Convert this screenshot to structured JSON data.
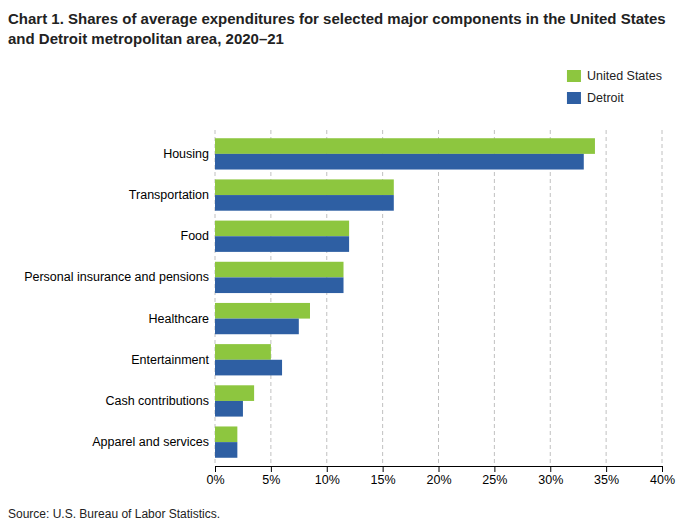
{
  "chart_data": {
    "type": "bar",
    "orientation": "horizontal",
    "title": "Chart 1. Shares of average expenditures for selected major components in the United States and Detroit metropolitan area, 2020–21",
    "source": "Source: U.S. Bureau of Labor Statistics.",
    "categories": [
      "Apparel and services",
      "Cash contributions",
      "Entertainment",
      "Healthcare",
      "Personal insurance and pensions",
      "Food",
      "Transportation",
      "Housing"
    ],
    "series": [
      {
        "name": "United States",
        "color": "#8dc63f",
        "values": [
          2.0,
          3.5,
          5.0,
          8.5,
          11.5,
          12.0,
          16.0,
          34.0
        ]
      },
      {
        "name": "Detroit",
        "color": "#2e5fa3",
        "values": [
          2.0,
          2.5,
          6.0,
          7.5,
          11.5,
          12.0,
          16.0,
          33.0
        ]
      }
    ],
    "xlim": [
      0,
      40
    ],
    "xticks": [
      {
        "value": 0,
        "label": "0%"
      },
      {
        "value": 5,
        "label": "5%"
      },
      {
        "value": 10,
        "label": "10%"
      },
      {
        "value": 15,
        "label": "15%"
      },
      {
        "value": 20,
        "label": "20%"
      },
      {
        "value": 25,
        "label": "25%"
      },
      {
        "value": 30,
        "label": "30%"
      },
      {
        "value": 35,
        "label": "35%"
      },
      {
        "value": 40,
        "label": "40%"
      }
    ],
    "grid": true,
    "legend": "upper right"
  }
}
